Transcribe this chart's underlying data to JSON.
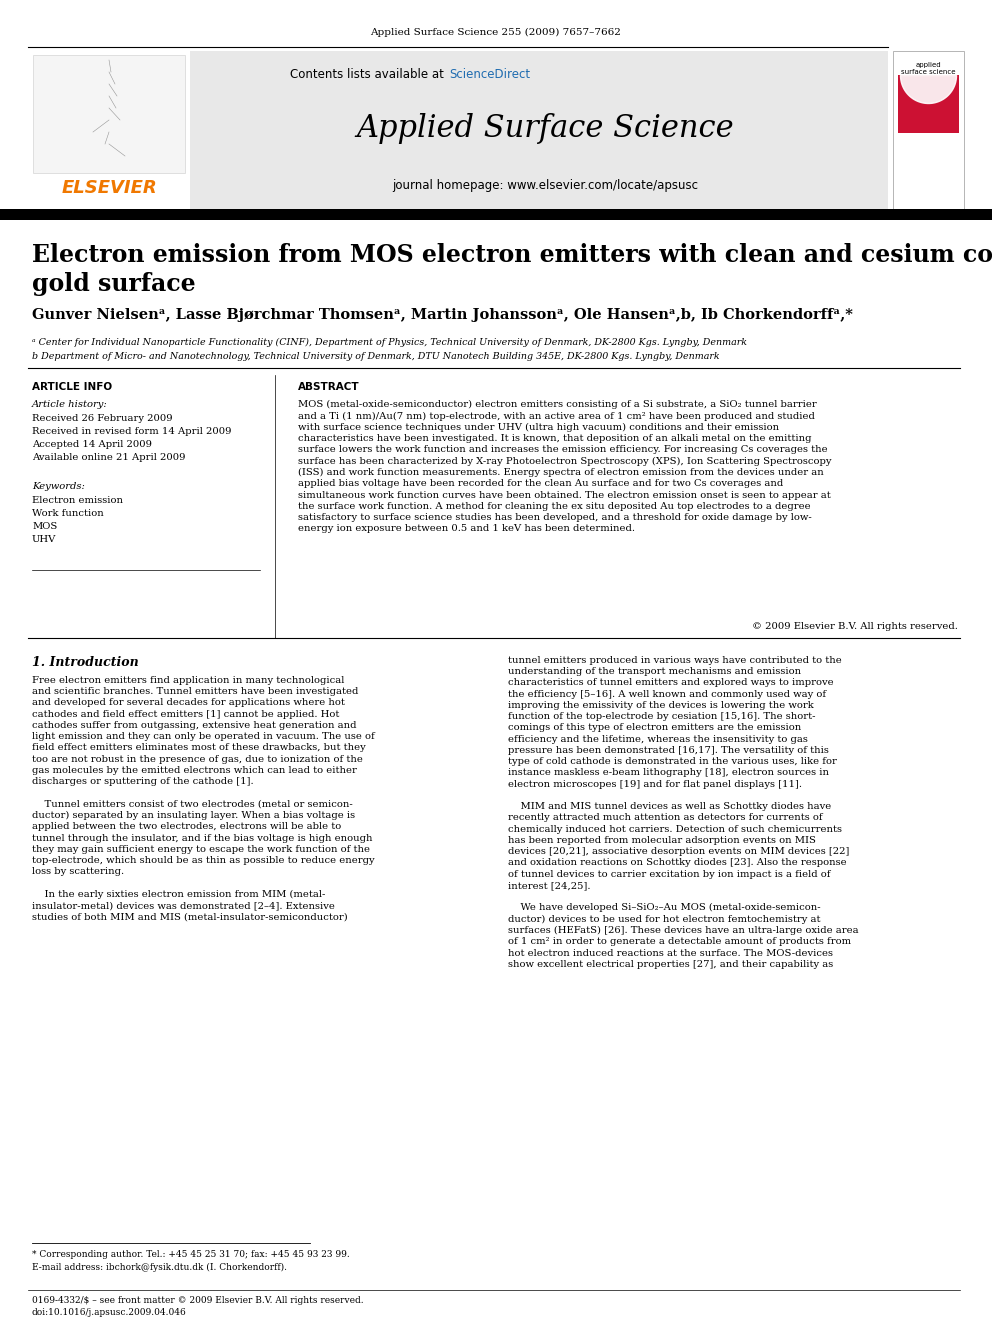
{
  "page_header_journal": "Applied Surface Science 255 (2009) 7657–7662",
  "journal_name": "Applied Surface Science",
  "journal_homepage": "journal homepage: www.elsevier.com/locate/apsusc",
  "contents_text": "Contents lists available at ",
  "sciencedirect_text": "ScienceDirect",
  "elsevier_text": "ELSEVIER",
  "paper_title": "Electron emission from MOS electron emitters with clean and cesium covered\ngold surface",
  "authors": "Gunver Nielsenᵃ, Lasse Bjørchmar Thomsenᵃ, Martin Johanssonᵃ, Ole Hansenᵃ,b, Ib Chorkendorffᵃ,*",
  "affil_a": "ᵃ Center for Individual Nanoparticle Functionality (CINF), Department of Physics, Technical University of Denmark, DK-2800 Kgs. Lyngby, Denmark",
  "affil_b": "b Department of Micro- and Nanotechnology, Technical University of Denmark, DTU Nanotech Building 345E, DK-2800 Kgs. Lyngby, Denmark",
  "article_info_header": "ARTICLE INFO",
  "abstract_header": "ABSTRACT",
  "article_history_label": "Article history:",
  "received": "Received 26 February 2009",
  "received_revised": "Received in revised form 14 April 2009",
  "accepted": "Accepted 14 April 2009",
  "available": "Available online 21 April 2009",
  "keywords_label": "Keywords:",
  "keyword1": "Electron emission",
  "keyword2": "Work function",
  "keyword3": "MOS",
  "keyword4": "UHV",
  "abstract_text": "MOS (metal-oxide-semiconductor) electron emitters consisting of a Si substrate, a SiO₂ tunnel barrier\nand a Ti (1 nm)/Au(7 nm) top-electrode, with an active area of 1 cm² have been produced and studied\nwith surface science techniques under UHV (ultra high vacuum) conditions and their emission\ncharacteristics have been investigated. It is known, that deposition of an alkali metal on the emitting\nsurface lowers the work function and increases the emission efficiency. For increasing Cs coverages the\nsurface has been characterized by X-ray Photoelectron Spectroscopy (XPS), Ion Scattering Spectroscopy\n(ISS) and work function measurements. Energy spectra of electron emission from the devices under an\napplied bias voltage have been recorded for the clean Au surface and for two Cs coverages and\nsimultaneous work function curves have been obtained. The electron emission onset is seen to appear at\nthe surface work function. A method for cleaning the ex situ deposited Au top electrodes to a degree\nsatisfactory to surface science studies has been developed, and a threshold for oxide damage by low-\nenergy ion exposure between 0.5 and 1 keV has been determined.",
  "abstract_copyright": "© 2009 Elsevier B.V. All rights reserved.",
  "intro_header": "1. Introduction",
  "intro_col1": "Free electron emitters find application in many technological\nand scientific branches. Tunnel emitters have been investigated\nand developed for several decades for applications where hot\ncathodes and field effect emitters [1] cannot be applied. Hot\ncathodes suffer from outgassing, extensive heat generation and\nlight emission and they can only be operated in vacuum. The use of\nfield effect emitters eliminates most of these drawbacks, but they\ntoo are not robust in the presence of gas, due to ionization of the\ngas molecules by the emitted electrons which can lead to either\ndischarges or sputtering of the cathode [1].\n\n    Tunnel emitters consist of two electrodes (metal or semicon-\nductor) separated by an insulating layer. When a bias voltage is\napplied between the two electrodes, electrons will be able to\ntunnel through the insulator, and if the bias voltage is high enough\nthey may gain sufficient energy to escape the work function of the\ntop-electrode, which should be as thin as possible to reduce energy\nloss by scattering.\n\n    In the early sixties electron emission from MIM (metal-\ninsulator-metal) devices was demonstrated [2–4]. Extensive\nstudies of both MIM and MIS (metal-insulator-semiconductor)",
  "intro_col2": "tunnel emitters produced in various ways have contributed to the\nunderstanding of the transport mechanisms and emission\ncharacteristics of tunnel emitters and explored ways to improve\nthe efficiency [5–16]. A well known and commonly used way of\nimproving the emissivity of the devices is lowering the work\nfunction of the top-electrode by cesiation [15,16]. The short-\ncomings of this type of electron emitters are the emission\nefficiency and the lifetime, whereas the insensitivity to gas\npressure has been demonstrated [16,17]. The versatility of this\ntype of cold cathode is demonstrated in the various uses, like for\ninstance maskless e-beam lithography [18], electron sources in\nelectron microscopes [19] and for flat panel displays [11].\n\n    MIM and MIS tunnel devices as well as Schottky diodes have\nrecently attracted much attention as detectors for currents of\nchemically induced hot carriers. Detection of such chemicurrents\nhas been reported from molecular adsorption events on MIS\ndevices [20,21], associative desorption events on MIM devices [22]\nand oxidation reactions on Schottky diodes [23]. Also the response\nof tunnel devices to carrier excitation by ion impact is a field of\ninterest [24,25].\n\n    We have developed Si–SiO₂–Au MOS (metal-oxide-semicon-\nductor) devices to be used for hot electron femtochemistry at\nsurfaces (HEFatS) [26]. These devices have an ultra-large oxide area\nof 1 cm² in order to generate a detectable amount of products from\nhot electron induced reactions at the surface. The MOS-devices\nshow excellent electrical properties [27], and their capability as",
  "footnote_corresponding": "* Corresponding author. Tel.: +45 45 25 31 70; fax: +45 45 93 23 99.",
  "footnote_email": "E-mail address: ibchork@fysik.dtu.dk (I. Chorkendorff).",
  "footer_issn": "0169-4332/$ – see front matter © 2009 Elsevier B.V. All rights reserved.",
  "footer_doi": "doi:10.1016/j.apsusc.2009.04.046",
  "bg_color": "#ffffff",
  "header_bg_color": "#e8e8e8",
  "sciencedirect_color": "#1f6cb0",
  "elsevier_color": "#f07800",
  "black": "#000000",
  "dark_gray": "#333333",
  "cover_red": "#cc1133"
}
